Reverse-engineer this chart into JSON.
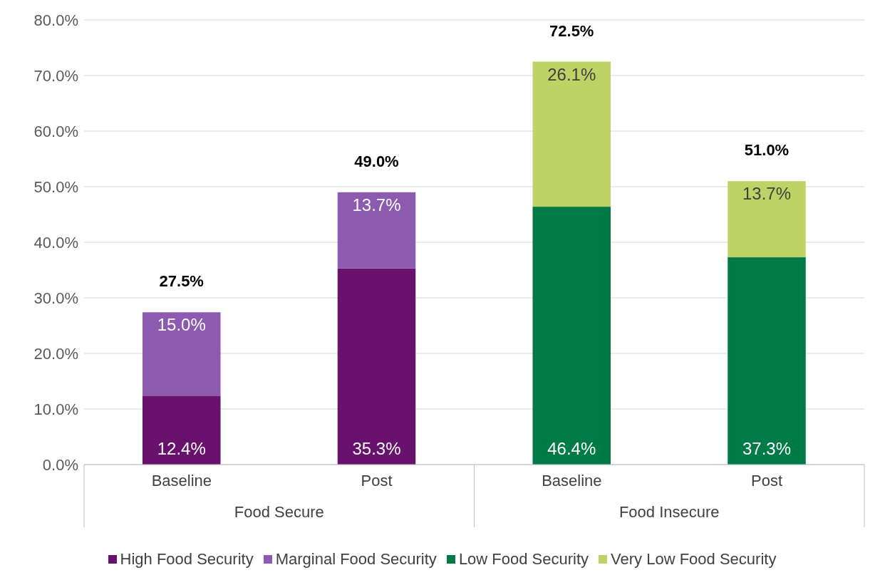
{
  "chart_data": {
    "type": "bar",
    "stacked": true,
    "categories": [
      "Baseline",
      "Post",
      "Baseline",
      "Post"
    ],
    "series": [
      {
        "name": "High Food Security",
        "color": "#68126e",
        "values": [
          12.4,
          35.3,
          null,
          null
        ],
        "value_labels": [
          "12.4%",
          "35.3%",
          null,
          null
        ]
      },
      {
        "name": "Marginal Food Security",
        "color": "#8c5bb0",
        "values": [
          15.0,
          13.7,
          null,
          null
        ],
        "value_labels": [
          "15.0%",
          "13.7%",
          null,
          null
        ]
      },
      {
        "name": "Low Food Security",
        "color": "#007a47",
        "values": [
          null,
          null,
          46.4,
          37.3
        ],
        "value_labels": [
          null,
          null,
          "46.4%",
          "37.3%"
        ]
      },
      {
        "name": "Very Low Food Security",
        "color": "#bfd265",
        "values": [
          null,
          null,
          26.1,
          13.7
        ],
        "value_labels": [
          null,
          null,
          "26.1%",
          "13.7%"
        ]
      }
    ],
    "totals": [
      "27.5%",
      "49.0%",
      "72.5%",
      "51.0%"
    ],
    "annotations": [
      "Food Secure",
      "Food Insecure"
    ],
    "ylim": [
      0,
      80
    ],
    "yticks": [
      {
        "value": 0,
        "label": "0.0%"
      },
      {
        "value": 10,
        "label": "10.0%"
      },
      {
        "value": 20,
        "label": "20.0%"
      },
      {
        "value": 30,
        "label": "30.0%"
      },
      {
        "value": 40,
        "label": "40.0%"
      },
      {
        "value": 50,
        "label": "50.0%"
      },
      {
        "value": 60,
        "label": "60.0%"
      },
      {
        "value": 70,
        "label": "70.0%"
      },
      {
        "value": 80,
        "label": "80.0%"
      }
    ],
    "grid": "y",
    "legend": "bottom"
  }
}
